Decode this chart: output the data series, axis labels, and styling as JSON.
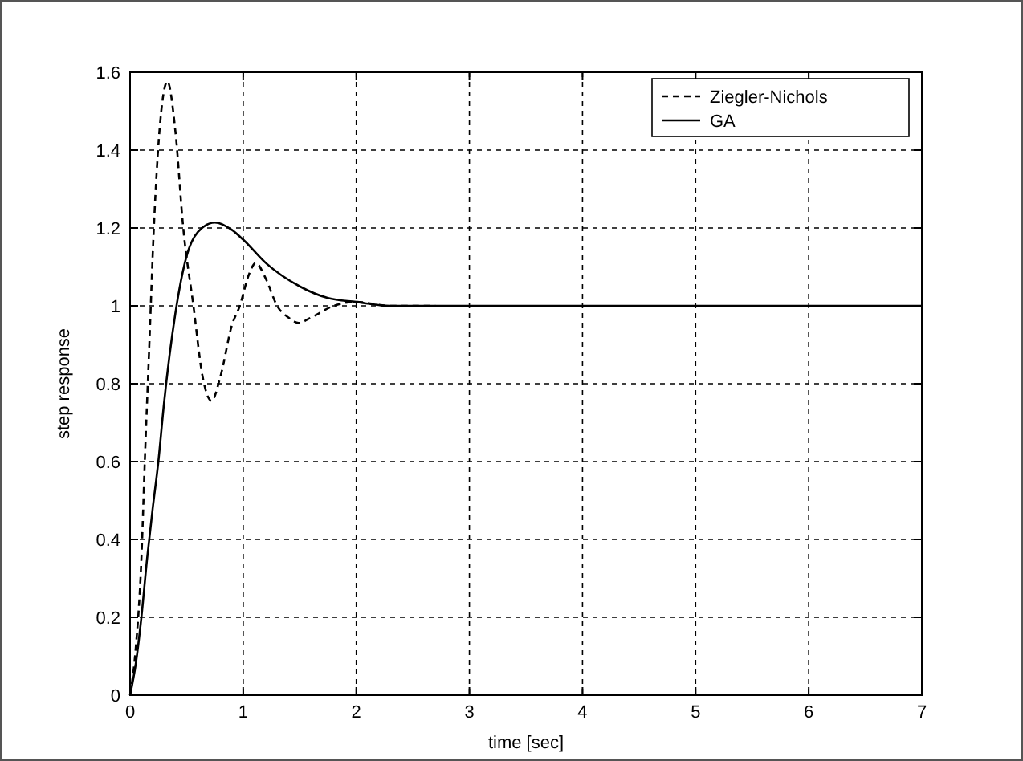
{
  "chart_data": {
    "type": "line",
    "xlabel": "time [sec]",
    "ylabel": "step response",
    "xlim": [
      0,
      7
    ],
    "ylim": [
      0,
      1.6
    ],
    "xticks": [
      0,
      1,
      2,
      3,
      4,
      5,
      6,
      7
    ],
    "yticks": [
      0,
      0.2,
      0.4,
      0.6,
      0.8,
      1,
      1.2,
      1.4,
      1.6
    ],
    "grid": true,
    "legend": "top right",
    "series": [
      {
        "name": "Ziegler-Nichols",
        "color": "#000000",
        "line_style": "dashed",
        "x": [
          0,
          0.05,
          0.1,
          0.13,
          0.17,
          0.21,
          0.26,
          0.33,
          0.4,
          0.47,
          0.56,
          0.64,
          0.72,
          0.8,
          0.9,
          0.97,
          1.05,
          1.11,
          1.2,
          1.3,
          1.4,
          1.49,
          1.6,
          1.8,
          2,
          2.3,
          2.7
        ],
        "values": [
          0,
          0.12,
          0.35,
          0.6,
          0.9,
          1.2,
          1.45,
          1.576,
          1.45,
          1.2,
          1,
          0.82,
          0.756,
          0.82,
          0.95,
          1,
          1.08,
          1.11,
          1.07,
          1,
          0.97,
          0.956,
          0.97,
          1,
          1.01,
          1,
          1
        ]
      },
      {
        "name": "GA",
        "color": "#000000",
        "line_style": "solid",
        "x": [
          0,
          0.05,
          0.1,
          0.15,
          0.2,
          0.25,
          0.3,
          0.4,
          0.5,
          0.6,
          0.75,
          0.9,
          1,
          1.2,
          1.5,
          1.75,
          2,
          2.3,
          2.7,
          3,
          4,
          5,
          6,
          7
        ],
        "values": [
          0,
          0.08,
          0.2,
          0.35,
          0.48,
          0.6,
          0.75,
          0.98,
          1.128,
          1.19,
          1.214,
          1.195,
          1.17,
          1.11,
          1.05,
          1.02,
          1.01,
          1,
          1,
          1,
          1,
          1,
          1,
          1
        ]
      }
    ]
  }
}
